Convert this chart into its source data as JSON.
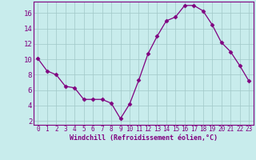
{
  "x": [
    0,
    1,
    2,
    3,
    4,
    5,
    6,
    7,
    8,
    9,
    10,
    11,
    12,
    13,
    14,
    15,
    16,
    17,
    18,
    19,
    20,
    21,
    22,
    23
  ],
  "y": [
    10.1,
    8.5,
    8.0,
    6.5,
    6.3,
    4.8,
    4.8,
    4.8,
    4.3,
    2.3,
    4.2,
    7.3,
    10.7,
    13.0,
    15.0,
    15.5,
    17.0,
    17.0,
    16.3,
    14.5,
    12.2,
    11.0,
    9.2,
    7.2
  ],
  "line_color": "#800080",
  "marker": "D",
  "marker_size": 2.5,
  "bg_color": "#c8ecec",
  "grid_color": "#a0c8c8",
  "xlabel": "Windchill (Refroidissement éolien,°C)",
  "xlabel_color": "#800080",
  "tick_color": "#800080",
  "spine_color": "#800080",
  "ylim": [
    1.5,
    17.5
  ],
  "xlim": [
    -0.5,
    23.5
  ],
  "yticks": [
    2,
    4,
    6,
    8,
    10,
    12,
    14,
    16
  ],
  "xticks": [
    0,
    1,
    2,
    3,
    4,
    5,
    6,
    7,
    8,
    9,
    10,
    11,
    12,
    13,
    14,
    15,
    16,
    17,
    18,
    19,
    20,
    21,
    22,
    23
  ],
  "xlabel_fontsize": 6.0,
  "tick_fontsize": 5.5,
  "ytick_fontsize": 6.5
}
